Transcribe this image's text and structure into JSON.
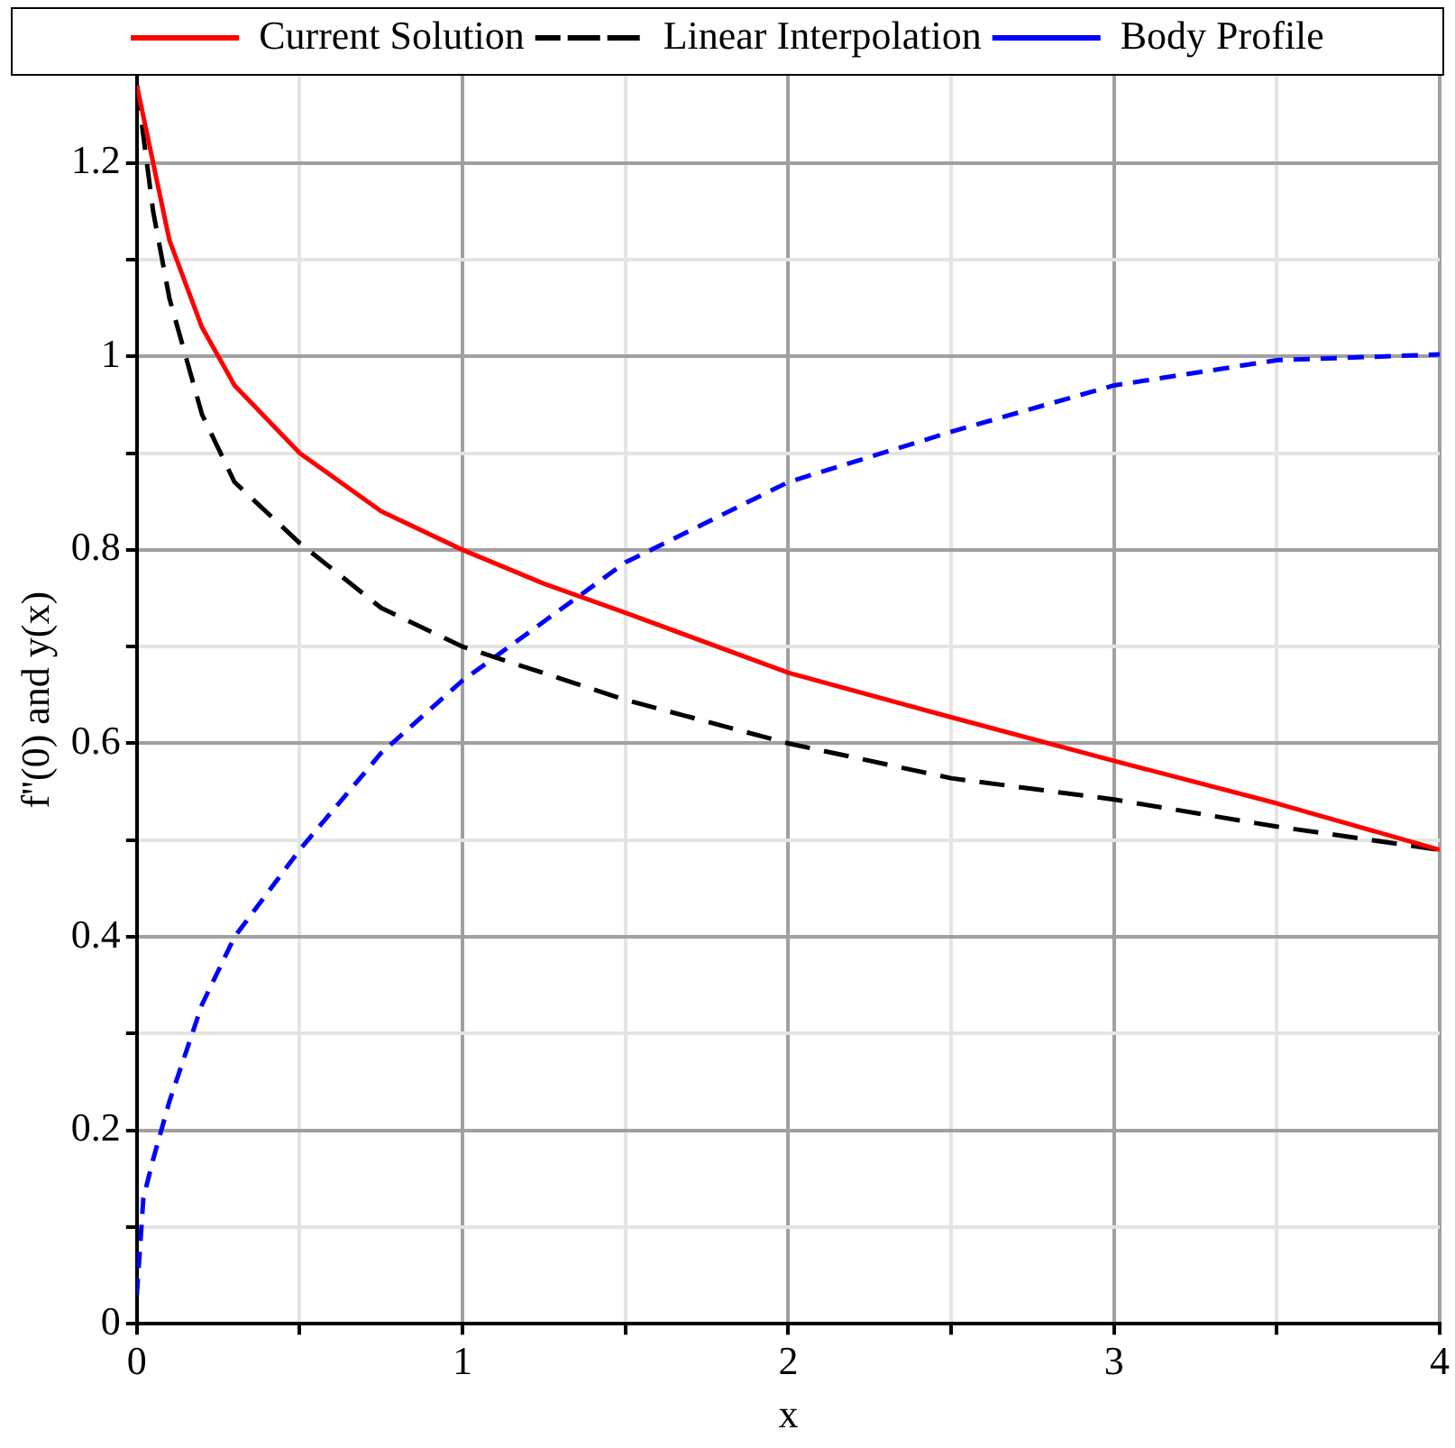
{
  "chart_data": {
    "type": "line",
    "xlabel": "x",
    "ylabel": "f''(0) and y(x)",
    "xlim": [
      0,
      4
    ],
    "ylim": [
      0,
      1.29
    ],
    "xticks": [
      0,
      {
        "value": 0.5,
        "label": null
      },
      1,
      {
        "value": 1.5,
        "label": null
      },
      2,
      {
        "value": 2.5,
        "label": null
      },
      3,
      {
        "value": 3.5,
        "label": null
      },
      4
    ],
    "yticks": [
      0,
      {
        "value": 0.1,
        "label": null
      },
      0.2,
      {
        "value": 0.3,
        "label": null
      },
      0.4,
      {
        "value": 0.5,
        "label": null
      },
      0.6,
      {
        "value": 0.7,
        "label": null
      },
      0.8,
      {
        "value": 0.9,
        "label": null
      },
      1,
      {
        "value": 1.1,
        "label": null
      },
      1.2
    ],
    "grid": true,
    "legend": "top",
    "marker": "none",
    "series": [
      {
        "name": "Current Solution",
        "color": "#ff0000",
        "line_style": "solid",
        "x": [
          0,
          0.05,
          0.1,
          0.2,
          0.3,
          0.5,
          0.75,
          1,
          1.25,
          1.5,
          2,
          2.5,
          3,
          3.5,
          4
        ],
        "values": [
          1.28,
          1.2,
          1.12,
          1.03,
          0.97,
          0.9,
          0.84,
          0.8,
          0.765,
          0.735,
          0.673,
          0.627,
          0.582,
          0.538,
          0.49
        ]
      },
      {
        "name": "Linear Interpolation",
        "color": "#000000",
        "line_style": "dashed",
        "x": [
          0,
          0.05,
          0.1,
          0.2,
          0.3,
          0.5,
          0.75,
          1,
          1.5,
          2,
          2.5,
          3,
          3.5,
          4
        ],
        "values": [
          1.28,
          1.15,
          1.06,
          0.94,
          0.87,
          0.807,
          0.74,
          0.7,
          0.645,
          0.6,
          0.564,
          0.542,
          0.514,
          0.49
        ]
      },
      {
        "name": "Body Profile",
        "color": "#0000ff",
        "line_style": "dashed",
        "x": [
          0,
          0.01,
          0.02,
          0.05,
          0.1,
          0.2,
          0.3,
          0.5,
          0.75,
          1,
          1.5,
          2,
          2.5,
          3,
          3.5,
          4
        ],
        "values": [
          0.03,
          0.08,
          0.13,
          0.17,
          0.23,
          0.33,
          0.4,
          0.49,
          0.59,
          0.665,
          0.787,
          0.87,
          0.922,
          0.97,
          0.996,
          1.002
        ]
      }
    ]
  }
}
